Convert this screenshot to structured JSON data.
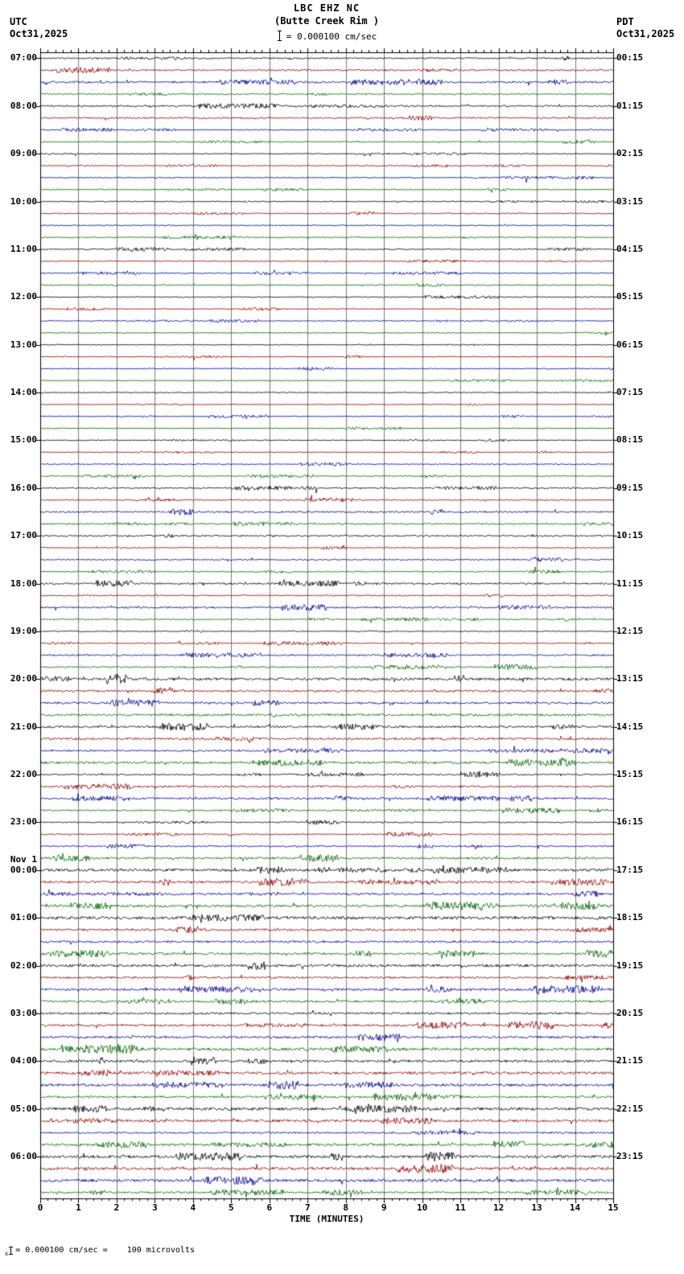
{
  "header": {
    "title_line1": "LBC EHZ NC",
    "title_line2": "(Butte Creek Rim )",
    "scale_text": "= 0.000100 cm/sec",
    "left_tz": "UTC",
    "left_date": "Oct31,2025",
    "right_tz": "PDT",
    "right_date": "Oct31,2025"
  },
  "axis": {
    "xlabel": "TIME (MINUTES)",
    "ticks": [
      "0",
      "1",
      "2",
      "3",
      "4",
      "5",
      "6",
      "7",
      "8",
      "9",
      "10",
      "11",
      "12",
      "13",
      "14",
      "15"
    ]
  },
  "footer": {
    "sub_mark": "x",
    "text": "= 0.000100 cm/sec =    100 microvolts"
  },
  "colors": {
    "background": "#ffffff",
    "grid": "#7a7a7a",
    "border": "#000000",
    "text": "#000000"
  },
  "chart_data": {
    "type": "line",
    "subtype": "helicorder_seismogram",
    "title": "LBC EHZ NC (Butte Creek Rim )",
    "station": "LBC",
    "channel": "EHZ",
    "network": "NC",
    "site_name": "Butte Creek Rim",
    "scale": "0.000100 cm/sec = 100 microvolts",
    "xlabel": "TIME (MINUTES)",
    "x_range_minutes": [
      0,
      15
    ],
    "minutes_per_row": 15,
    "rows_total": 96,
    "traces_per_hour": 4,
    "row_colors_cycle": [
      "#000000",
      "#8b0000",
      "#00008b",
      "#006400"
    ],
    "utc_hour_labels": [
      "07:00",
      "08:00",
      "09:00",
      "10:00",
      "11:00",
      "12:00",
      "13:00",
      "14:00",
      "15:00",
      "16:00",
      "17:00",
      "18:00",
      "19:00",
      "20:00",
      "21:00",
      "22:00",
      "23:00",
      "00:00",
      "01:00",
      "02:00",
      "03:00",
      "04:00",
      "05:00",
      "06:00"
    ],
    "pdt_hour_labels": [
      "00:15",
      "01:15",
      "02:15",
      "03:15",
      "04:15",
      "05:15",
      "06:15",
      "07:15",
      "08:15",
      "09:15",
      "10:15",
      "11:15",
      "12:15",
      "13:15",
      "14:15",
      "15:15",
      "16:15",
      "17:15",
      "18:15",
      "19:15",
      "20:15",
      "21:15",
      "22:15",
      "23:15"
    ],
    "utc_day_change_label": "Nov 1",
    "utc_day_change_at": "00:00",
    "grid": "vertical line each minute, ticks on top and bottom borders",
    "legend": "none",
    "signal_description": "Continuous low-amplitude background seismic noise on every 15-minute trace; quietest roughly 10:00-16:00 UTC, slightly elevated amplitude 20:00-06:00 UTC; no large earthquake signatures."
  }
}
